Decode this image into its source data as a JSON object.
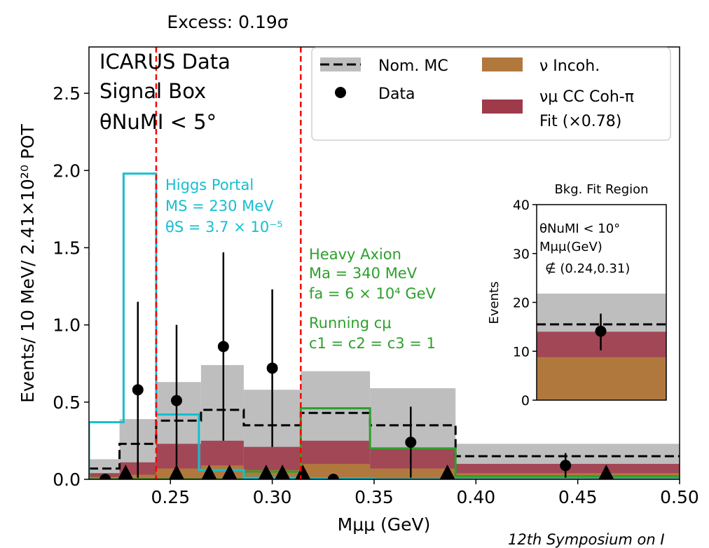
{
  "header": {
    "excess_label": "Excess: 0.19σ"
  },
  "footer": {
    "text": "12th Symposium on I"
  },
  "chart_data": {
    "type": "histogram",
    "ylabel": "Events/ 10 MeV/ 2.41×10²⁰ POT",
    "xlabel": "Mμμ (GeV)",
    "xlim": [
      0.21,
      0.5
    ],
    "ylim": [
      0.0,
      2.8
    ],
    "xticks": [
      "0.25",
      "0.30",
      "0.35",
      "0.40",
      "0.45",
      "0.50"
    ],
    "yticks": [
      "0.0",
      "0.5",
      "1.0",
      "1.5",
      "2.0",
      "2.5"
    ],
    "corner_text": [
      "ICARUS Data",
      "Signal Box",
      "θNuMI < 5°"
    ],
    "bin_edges": [
      0.21,
      0.225,
      0.243,
      0.265,
      0.286,
      0.314,
      0.348,
      0.39,
      0.5
    ],
    "nominal_mc": [
      0.07,
      0.23,
      0.38,
      0.45,
      0.35,
      0.43,
      0.35,
      0.15
    ],
    "mc_band_upper": [
      0.13,
      0.39,
      0.63,
      0.74,
      0.58,
      0.7,
      0.59,
      0.23
    ],
    "coh_pi_fit": [
      0.04,
      0.11,
      0.23,
      0.25,
      0.21,
      0.25,
      0.2,
      0.1
    ],
    "incoherent": [
      0.015,
      0.03,
      0.07,
      0.09,
      0.06,
      0.1,
      0.07,
      0.04
    ],
    "data_points": [
      {
        "x": 0.218,
        "y": 0.0,
        "err": 0.0
      },
      {
        "x": 0.234,
        "y": 0.58,
        "err": 0.57
      },
      {
        "x": 0.253,
        "y": 0.51,
        "err": 0.49
      },
      {
        "x": 0.276,
        "y": 0.86,
        "err": 0.61
      },
      {
        "x": 0.3,
        "y": 0.72,
        "err": 0.51
      },
      {
        "x": 0.33,
        "y": 0.0,
        "err": 0.0
      },
      {
        "x": 0.368,
        "y": 0.24,
        "err": 0.23
      },
      {
        "x": 0.444,
        "y": 0.09,
        "err": 0.08
      }
    ],
    "triangle_markers_x": [
      0.228,
      0.253,
      0.269,
      0.279,
      0.297,
      0.305,
      0.315,
      0.386,
      0.464
    ],
    "excess_window": [
      0.243,
      0.314
    ],
    "higgs_portal": {
      "label": [
        "Higgs Portal",
        "MS = 230 MeV",
        "θS = 3.7 × 10⁻⁵"
      ],
      "bin_edges": [
        0.21,
        0.227,
        0.243,
        0.264,
        0.286,
        0.314,
        0.35,
        0.5
      ],
      "values": [
        0.37,
        1.98,
        0.42,
        0.06,
        0.01,
        0.005,
        0.0
      ],
      "color": "#17becf"
    },
    "heavy_axion": {
      "label": [
        "Heavy Axion",
        "Ma = 340 MeV",
        "fa = 6 × 10⁴ GeV",
        "Running cμ",
        "c1 = c2 = c3 = 1"
      ],
      "bin_edges": [
        0.21,
        0.286,
        0.314,
        0.348,
        0.39,
        0.5
      ],
      "values": [
        0.0,
        0.05,
        0.46,
        0.2,
        0.02
      ],
      "color": "#2ca02c"
    },
    "legend": {
      "position": "top-right",
      "entries": [
        "Nom. MC",
        "Data",
        "ν Incoh.",
        "νμ CC Coh-π",
        "Fit (×0.78)"
      ]
    },
    "inset": {
      "title": "Bkg. Fit Region",
      "ylabel": "Events",
      "ylim": [
        0,
        40
      ],
      "yticks": [
        "0",
        "10",
        "20",
        "30",
        "40"
      ],
      "text": [
        "θNuMI < 10°",
        "Mμμ(GeV)",
        "∉ (0.24,0.31)"
      ],
      "band_upper": 21.8,
      "nominal": 15.5,
      "coh_top": 14.0,
      "incoh_top": 8.8,
      "data": {
        "y": 14.1,
        "err_lo": 3.9,
        "err_hi": 3.6
      }
    },
    "colors": {
      "mc_band": "#bebebe",
      "coh_pi": "#9e3a4a",
      "incoherent": "#b1783e",
      "excess_lines": "#ff0000"
    }
  }
}
